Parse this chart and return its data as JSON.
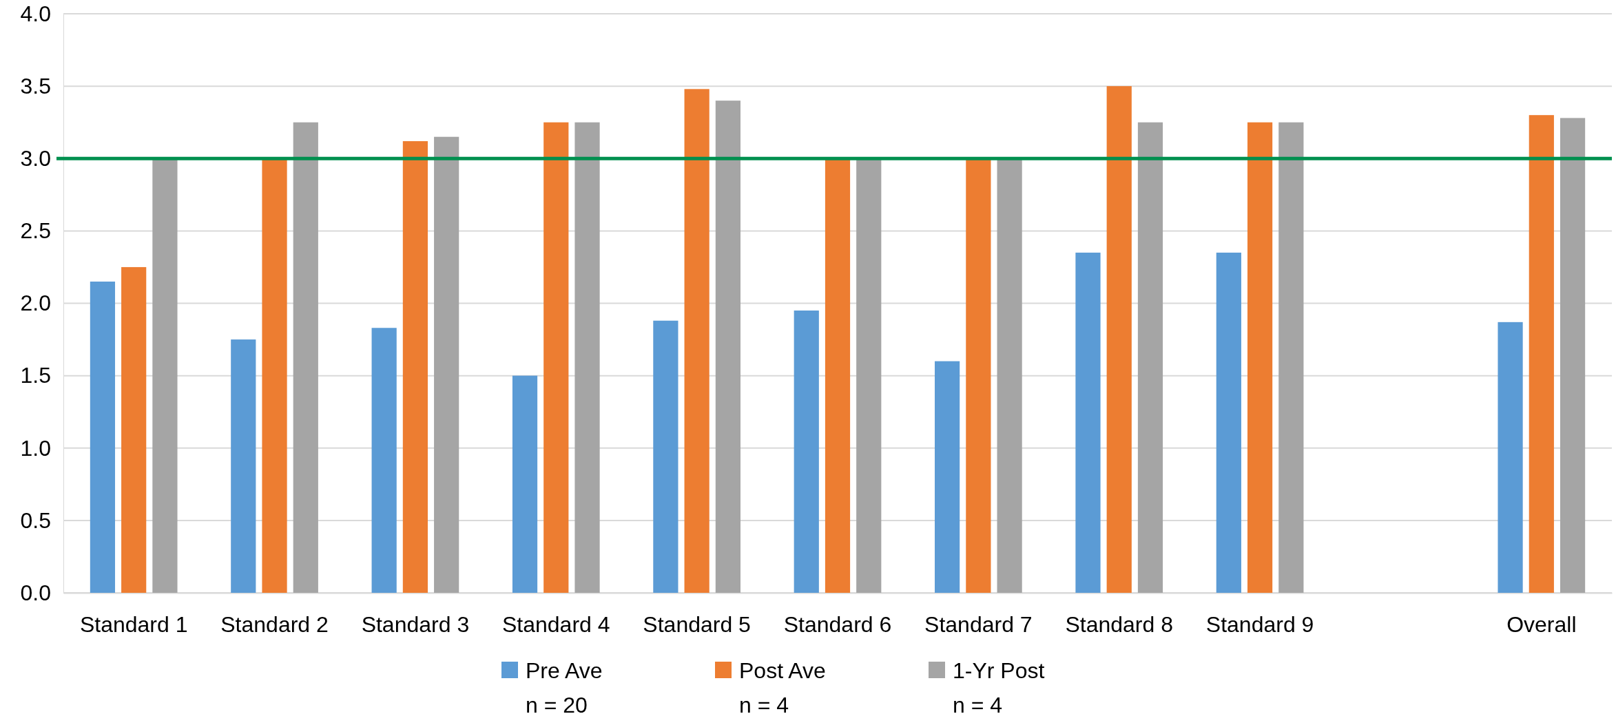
{
  "chart_data": {
    "type": "bar",
    "categories": [
      "Standard 1",
      "Standard 2",
      "Standard 3",
      "Standard 4",
      "Standard 5",
      "Standard 6",
      "Standard 7",
      "Standard 8",
      "Standard 9",
      null,
      "Overall"
    ],
    "series": [
      {
        "name": "Pre Ave\nn = 20",
        "color": "#5b9bd5",
        "values": [
          2.15,
          1.75,
          1.83,
          1.5,
          1.88,
          1.95,
          1.6,
          2.35,
          2.35,
          null,
          1.87
        ]
      },
      {
        "name": "Post Ave\nn = 4",
        "color": "#ed7d31",
        "values": [
          2.25,
          3.0,
          3.12,
          3.25,
          3.48,
          3.0,
          3.0,
          3.5,
          3.25,
          null,
          3.3
        ]
      },
      {
        "name": "1-Yr Post\nn = 4",
        "color": "#a5a5a5",
        "values": [
          3.0,
          3.25,
          3.15,
          3.25,
          3.4,
          3.0,
          3.0,
          3.25,
          3.25,
          null,
          3.28
        ]
      }
    ],
    "ylim": [
      0,
      4
    ],
    "yticks": [
      {
        "value": 0,
        "label": "0.0"
      },
      {
        "value": 0.5,
        "label": "0.5"
      },
      {
        "value": 1,
        "label": "1.0"
      },
      {
        "value": 1.5,
        "label": "1.5"
      },
      {
        "value": 2,
        "label": "2.0"
      },
      {
        "value": 2.5,
        "label": "2.5"
      },
      {
        "value": 3,
        "label": "3.0"
      },
      {
        "value": 3.5,
        "label": "3.5"
      },
      {
        "value": 4,
        "label": "4.0"
      }
    ],
    "grid": "y",
    "legend": "bottom",
    "ref_lines": [
      {
        "axis": "y",
        "value": 3,
        "color": "#00904f"
      }
    ]
  }
}
